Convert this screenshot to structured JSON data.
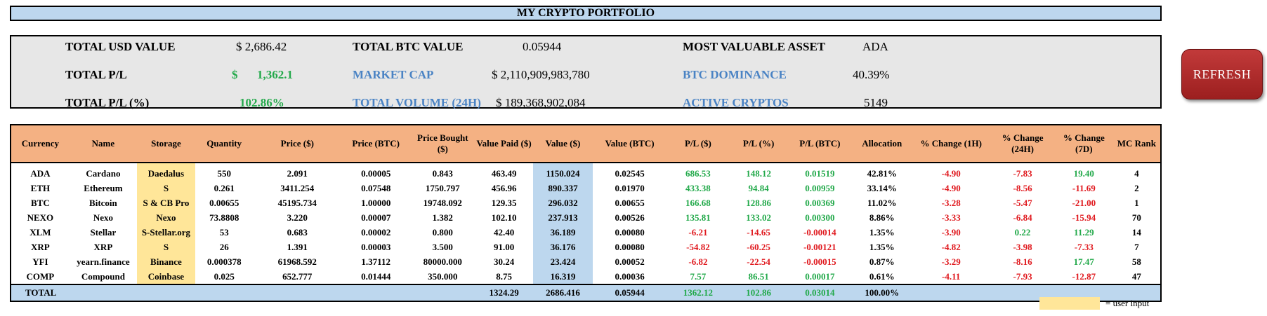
{
  "title": "MY CRYPTO PORTFOLIO",
  "summary": {
    "total_usd_label": "TOTAL USD VALUE",
    "total_usd_value": "$ 2,686.42",
    "total_btc_label": "TOTAL BTC VALUE",
    "total_btc_value": "0.05944",
    "most_valuable_label": "MOST VALUABLE ASSET",
    "most_valuable_value": "ADA",
    "total_pl_label": "TOTAL P/L",
    "total_pl_currency": "$",
    "total_pl_value": "1,362.1",
    "market_cap_label": "MARKET CAP",
    "market_cap_value": "$ 2,110,909,983,780",
    "btc_dominance_label": "BTC DOMINANCE",
    "btc_dominance_value": "40.39%",
    "total_pl_pct_label": "TOTAL P/L (%)",
    "total_pl_pct_value": "102.86%",
    "total_volume_label": "TOTAL VOLUME (24H)",
    "total_volume_value": "$ 189,368,902,084",
    "active_cryptos_label": "ACTIVE CRYPTOS",
    "active_cryptos_value": "5149"
  },
  "refresh_label": "REFRESH",
  "table": {
    "headers": [
      "Currency",
      "Name",
      "Storage",
      "Quantity",
      "Price ($)",
      "Price (BTC)",
      "Price Bought ($)",
      "Value Paid ($)",
      "Value ($)",
      "Value (BTC)",
      "P/L ($)",
      "P/L (%)",
      "P/L (BTC)",
      "Allocation",
      "% Change (1H)",
      "% Change (24H)",
      "% Change (7D)",
      "MC Rank"
    ],
    "rows": [
      [
        "ADA",
        "Cardano",
        "Daedalus",
        "550",
        "2.091",
        "0.00005",
        "0.843",
        "463.49",
        "1150.024",
        "0.02545",
        "686.53",
        "148.12",
        "0.01519",
        "42.81%",
        "-4.90",
        "-7.83",
        "19.40",
        "4"
      ],
      [
        "ETH",
        "Ethereum",
        "S",
        "0.261",
        "3411.254",
        "0.07548",
        "1750.797",
        "456.96",
        "890.337",
        "0.01970",
        "433.38",
        "94.84",
        "0.00959",
        "33.14%",
        "-4.90",
        "-8.56",
        "-11.69",
        "2"
      ],
      [
        "BTC",
        "Bitcoin",
        "S & CB Pro",
        "0.00655",
        "45195.734",
        "1.00000",
        "19748.092",
        "129.35",
        "296.032",
        "0.00655",
        "166.68",
        "128.86",
        "0.00369",
        "11.02%",
        "-3.28",
        "-5.47",
        "-21.00",
        "1"
      ],
      [
        "NEXO",
        "Nexo",
        "Nexo",
        "73.8808",
        "3.220",
        "0.00007",
        "1.382",
        "102.10",
        "237.913",
        "0.00526",
        "135.81",
        "133.02",
        "0.00300",
        "8.86%",
        "-3.33",
        "-6.84",
        "-15.94",
        "70"
      ],
      [
        "XLM",
        "Stellar",
        "S-Stellar.org",
        "53",
        "0.683",
        "0.00002",
        "0.800",
        "42.40",
        "36.189",
        "0.00080",
        "-6.21",
        "-14.65",
        "-0.00014",
        "1.35%",
        "-3.90",
        "0.22",
        "11.29",
        "14"
      ],
      [
        "XRP",
        "XRP",
        "S",
        "26",
        "1.391",
        "0.00003",
        "3.500",
        "91.00",
        "36.176",
        "0.00080",
        "-54.82",
        "-60.25",
        "-0.00121",
        "1.35%",
        "-4.82",
        "-3.98",
        "-7.33",
        "7"
      ],
      [
        "YFI",
        "yearn.finance",
        "Binance",
        "0.000378",
        "61968.592",
        "1.37112",
        "80000.000",
        "30.24",
        "23.424",
        "0.00052",
        "-6.82",
        "-22.54",
        "-0.00015",
        "0.87%",
        "-3.29",
        "-8.16",
        "17.47",
        "58"
      ],
      [
        "COMP",
        "Compound",
        "Coinbase",
        "0.025",
        "652.777",
        "0.01444",
        "350.000",
        "8.75",
        "16.319",
        "0.00036",
        "7.57",
        "86.51",
        "0.00017",
        "0.61%",
        "-4.11",
        "-7.93",
        "-12.87",
        "47"
      ]
    ],
    "total": {
      "label": "TOTAL",
      "value_paid": "1324.29",
      "value_usd": "2686.416",
      "value_btc": "0.05944",
      "pl_usd": "1362.12",
      "pl_pct": "102.86",
      "pl_btc": "0.03014",
      "allocation": "100.00%"
    }
  },
  "legend": {
    "label": "= user input",
    "color": "#ffe699"
  },
  "colors": {
    "header_bg": "#f4b183",
    "title_bg": "#bdd7ee",
    "positive": "#22a94a",
    "negative": "#e0191e",
    "refresh_button": "#b22b2b",
    "summary_blue_label": "#4a83c4"
  }
}
